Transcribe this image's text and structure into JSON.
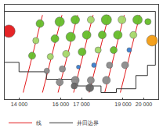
{
  "chart_data": {
    "type": "scatter",
    "xlim": [
      13300,
      20700
    ],
    "ylim": [
      0,
      100
    ],
    "xticks": [
      {
        "value": 14000,
        "label": "14 000"
      },
      {
        "value": 16000,
        "label": "16 000"
      },
      {
        "value": 17000,
        "label": "17 000"
      },
      {
        "value": 19000,
        "label": "19 000"
      },
      {
        "value": 20000,
        "label": "20 000"
      }
    ],
    "tick_labels": "x",
    "legend": "bottom-left",
    "series": [
      {
        "name": "线",
        "type": "line",
        "color": "#e31a1c",
        "x": [
          15120,
          14190,
          null,
          16060,
          15120,
          null,
          16810,
          15870,
          null,
          17560,
          16620,
          null,
          18310,
          17370,
          null,
          19060,
          18120,
          null,
          19810,
          18870
        ],
        "y": [
          89,
          7,
          null,
          89,
          7,
          null,
          89,
          7,
          null,
          89,
          7,
          null,
          89,
          7,
          null,
          89,
          7,
          null,
          89,
          7
        ]
      },
      {
        "name": "井田边界",
        "type": "line",
        "color": "#333333",
        "x": [
          13250,
          20560,
          20560,
          20180,
          20180,
          19620,
          19620,
          18680,
          18680,
          17940,
          17940,
          16810,
          16810,
          15310,
          15310,
          13990,
          13990,
          13250,
          13250
        ],
        "y": [
          93,
          93,
          36,
          36,
          25,
          25,
          11,
          11,
          7,
          7,
          14,
          14,
          21,
          21,
          29,
          29,
          39,
          39,
          93
        ]
      },
      {
        "type": "scatter",
        "x": [
          15000,
          14800,
          14620,
          15950,
          15720,
          15500,
          15330,
          16700,
          16480,
          16260,
          16080,
          15950,
          17450,
          17250,
          17030,
          16850,
          16700,
          16650,
          18200,
          18000,
          17800,
          17600,
          17450,
          17400,
          18950,
          18750,
          18550,
          18350,
          18200,
          19700,
          19500,
          19300,
          19100,
          20400,
          13500,
          20200
        ],
        "y": [
          80,
          62,
          46,
          82,
          64,
          45,
          30,
          84,
          66,
          48,
          32,
          18,
          84,
          68,
          50,
          34,
          20,
          14,
          84,
          68,
          52,
          36,
          20,
          12,
          84,
          68,
          52,
          36,
          20,
          84,
          68,
          52,
          36,
          62,
          72,
          82
        ],
        "sizes": [
          10,
          8,
          9,
          12,
          10,
          8,
          7,
          11,
          12,
          9,
          8,
          9,
          9,
          11,
          10,
          5,
          10,
          8,
          13,
          10,
          8,
          6,
          9,
          10,
          10,
          11,
          9,
          8,
          10,
          12,
          9,
          6,
          9,
          14,
          16,
          8
        ],
        "colors": [
          "#66bd2a",
          "#a6d96a",
          "#66bd2a",
          "#66bd2a",
          "#66bd2a",
          "#a6d96a",
          "#8c8c8c",
          "#66bd2a",
          "#66bd2a",
          "#a6d96a",
          "#8c8c8c",
          "#8c8c8c",
          "#a6d96a",
          "#66bd2a",
          "#66bd2a",
          "#3a7fd0",
          "#8c8c8c",
          "#666666",
          "#66bd2a",
          "#66bd2a",
          "#a6d96a",
          "#3a7fd0",
          "#8c8c8c",
          "#666666",
          "#a6d96a",
          "#66bd2a",
          "#66bd2a",
          "#8c8c8c",
          "#8c8c8c",
          "#66bd2a",
          "#a6d96a",
          "#3a7fd0",
          "#8c8c8c",
          "#f39c12",
          "#e41a1c",
          "#66bd2a"
        ]
      }
    ]
  }
}
